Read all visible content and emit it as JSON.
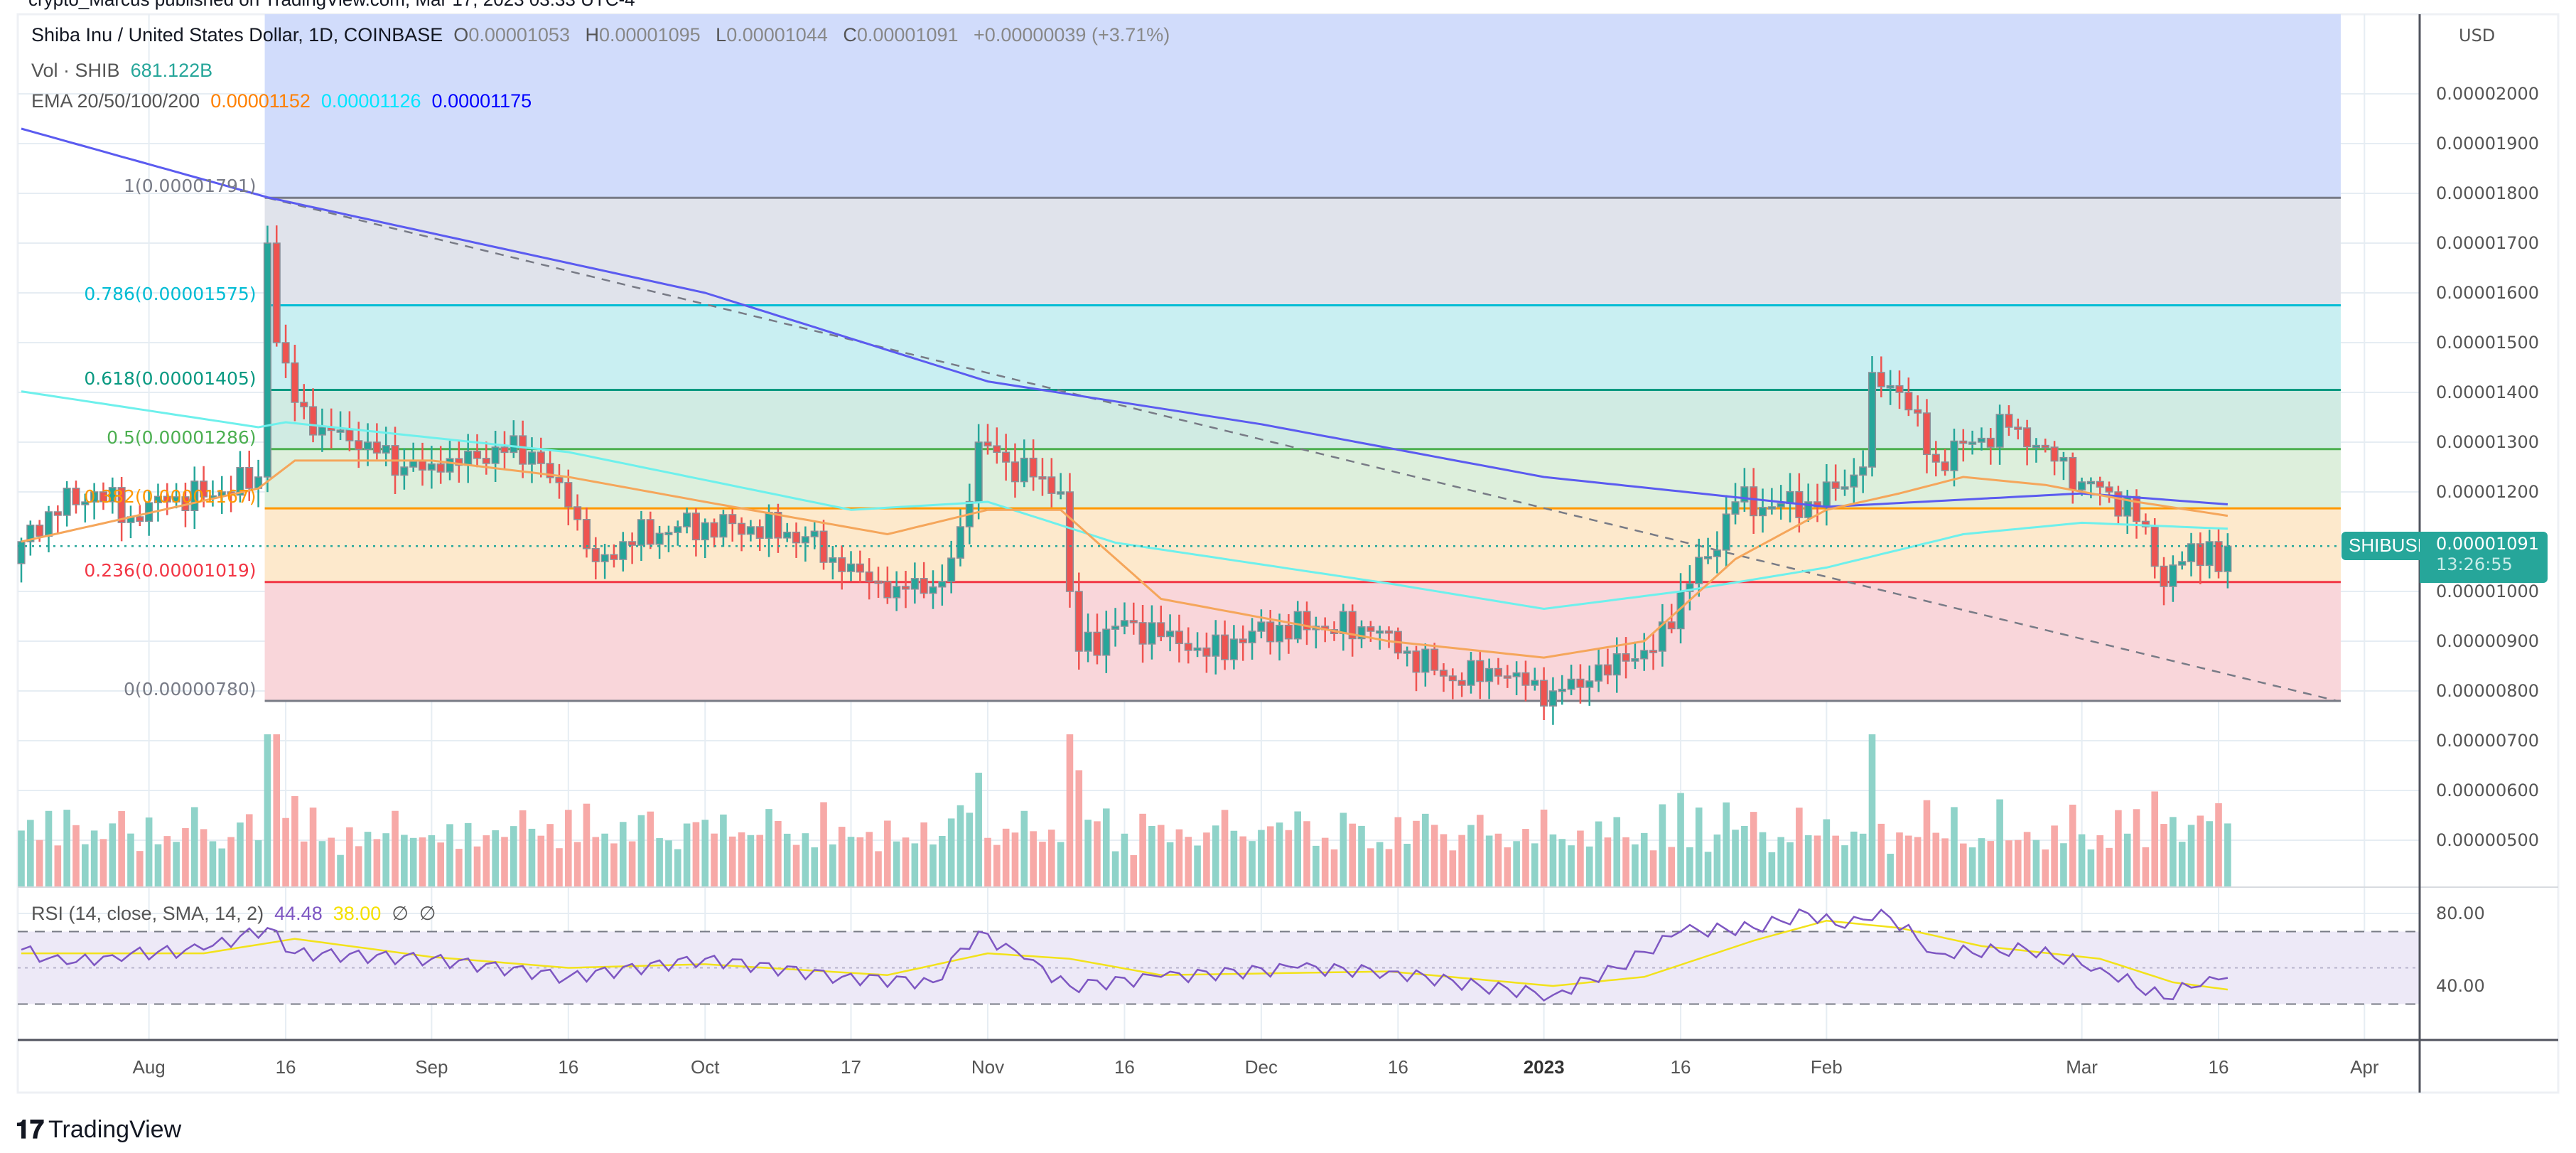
{
  "publisher_line": "crypto_Marcus published on TradingView.com, Mar 17, 2023 03:33 UTC-4",
  "legend": {
    "symbol_title": "Shiba Inu / United States Dollar, 1D, COINBASE",
    "ohlc": [
      {
        "key": "O",
        "value": "0.00001053"
      },
      {
        "key": "H",
        "value": "0.00001095"
      },
      {
        "key": "L",
        "value": "0.00001044"
      },
      {
        "key": "C",
        "value": "0.00001091"
      }
    ],
    "change": "+0.00000039 (+3.71%)",
    "volume_label": "Vol · SHIB",
    "volume_value": "681.122B",
    "ema_label": "EMA 20/50/100/200",
    "ema_values": [
      "0.00001152",
      "0.00001126",
      "0.00001175"
    ],
    "rsi_label": "RSI (14, close, SMA, 14, 2)",
    "rsi_value": "44.48",
    "rsi_sma_value": "38.00",
    "rsi_extra": [
      "∅",
      "∅"
    ]
  },
  "price_axis": {
    "currency": "USD",
    "ticks": [
      "0.00002000",
      "0.00001900",
      "0.00001800",
      "0.00001700",
      "0.00001600",
      "0.00001500",
      "0.00001400",
      "0.00001300",
      "0.00001200",
      "0.00001000",
      "0.00000900",
      "0.00000800",
      "0.00000700",
      "0.00000600",
      "0.00000500"
    ],
    "last_price": "0.00001091",
    "countdown": "13:26:55",
    "symbol_tag": "SHIBUSD"
  },
  "rsi_axis": {
    "ticks": [
      "80.00",
      "40.00"
    ]
  },
  "time_axis": {
    "ticks": [
      {
        "label": "Aug",
        "day": 14
      },
      {
        "label": "16",
        "day": 29
      },
      {
        "label": "Sep",
        "day": 45
      },
      {
        "label": "16",
        "day": 60
      },
      {
        "label": "Oct",
        "day": 75
      },
      {
        "label": "17",
        "day": 91
      },
      {
        "label": "Nov",
        "day": 106
      },
      {
        "label": "16",
        "day": 121
      },
      {
        "label": "Dec",
        "day": 136
      },
      {
        "label": "16",
        "day": 151
      },
      {
        "label": "2023",
        "day": 167
      },
      {
        "label": "16",
        "day": 182
      },
      {
        "label": "Feb",
        "day": 198
      },
      {
        "label": "Mar",
        "day": 226
      },
      {
        "label": "16",
        "day": 241
      },
      {
        "label": "Apr",
        "day": 257
      }
    ]
  },
  "fib_levels": [
    {
      "label": "1(0.00001791)",
      "price": 1791,
      "color": "#787b86",
      "fill": "#e0e3eb"
    },
    {
      "label": "0.786(0.00001575)",
      "price": 1575,
      "color": "#00bcd4",
      "fill": "#c9eff2"
    },
    {
      "label": "0.618(0.00001405)",
      "price": 1405,
      "color": "#089981",
      "fill": "#d0ebe3"
    },
    {
      "label": "0.5(0.00001286)",
      "price": 1286,
      "color": "#4caf50",
      "fill": "#ddefdc"
    },
    {
      "label": "0.382(0.00001167)",
      "price": 1167,
      "color": "#ff9800",
      "fill": "#fde9cc"
    },
    {
      "label": "0.236(0.00001019)",
      "price": 1019,
      "color": "#f23645",
      "fill": "#f9d6da"
    },
    {
      "label": "0(0.00000780)",
      "price": 780,
      "color": "#787b86",
      "fill": null
    }
  ],
  "colors": {
    "up": "#26a69a",
    "down": "#ef5350",
    "ema20": "#ff9800",
    "ema50": "#00ffff",
    "ema200": "#0000ff",
    "rsi": "#7e57c2",
    "rsi_sma": "#ffeb3b",
    "above_fib": "#d1dcfb"
  },
  "footer": {
    "brand": "TradingView"
  },
  "chart_data": {
    "type": "candlestick",
    "title": "Shiba Inu / United States Dollar, 1D, COINBASE",
    "x_unit": "days since Jul 18 2022",
    "y_unit": "USD x 1e-8",
    "ylim": [
      430,
      2050
    ],
    "closes": [
      [
        0,
        1100
      ],
      [
        3,
        1160
      ],
      [
        8,
        1200
      ],
      [
        12,
        1150
      ],
      [
        16,
        1180
      ],
      [
        22,
        1200
      ],
      [
        26,
        1230
      ],
      [
        27,
        1700
      ],
      [
        28,
        1500
      ],
      [
        30,
        1380
      ],
      [
        33,
        1330
      ],
      [
        38,
        1300
      ],
      [
        42,
        1250
      ],
      [
        46,
        1240
      ],
      [
        52,
        1290
      ],
      [
        56,
        1280
      ],
      [
        60,
        1170
      ],
      [
        63,
        1060
      ],
      [
        66,
        1100
      ],
      [
        72,
        1130
      ],
      [
        80,
        1130
      ],
      [
        86,
        1110
      ],
      [
        90,
        1040
      ],
      [
        96,
        1010
      ],
      [
        101,
        1020
      ],
      [
        103,
        1130
      ],
      [
        105,
        1300
      ],
      [
        108,
        1260
      ],
      [
        112,
        1230
      ],
      [
        114,
        1200
      ],
      [
        115,
        1000
      ],
      [
        116,
        880
      ],
      [
        120,
        930
      ],
      [
        126,
        920
      ],
      [
        130,
        870
      ],
      [
        135,
        920
      ],
      [
        142,
        930
      ],
      [
        148,
        920
      ],
      [
        152,
        880
      ],
      [
        156,
        830
      ],
      [
        162,
        830
      ],
      [
        168,
        800
      ],
      [
        172,
        820
      ],
      [
        176,
        860
      ],
      [
        179,
        880
      ],
      [
        182,
        1000
      ],
      [
        185,
        1070
      ],
      [
        188,
        1180
      ],
      [
        192,
        1170
      ],
      [
        196,
        1180
      ],
      [
        200,
        1210
      ],
      [
        202,
        1250
      ],
      [
        203,
        1440
      ],
      [
        206,
        1400
      ],
      [
        210,
        1260
      ],
      [
        214,
        1300
      ],
      [
        218,
        1330
      ],
      [
        222,
        1290
      ],
      [
        226,
        1220
      ],
      [
        229,
        1200
      ],
      [
        233,
        1130
      ],
      [
        235,
        1010
      ],
      [
        237,
        1060
      ],
      [
        240,
        1100
      ],
      [
        241,
        1040
      ],
      [
        242,
        1091
      ]
    ],
    "ema20": [
      [
        0,
        1100
      ],
      [
        26,
        1207
      ],
      [
        30,
        1263
      ],
      [
        45,
        1263
      ],
      [
        60,
        1230
      ],
      [
        75,
        1180
      ],
      [
        95,
        1115
      ],
      [
        106,
        1164
      ],
      [
        114,
        1164
      ],
      [
        125,
        985
      ],
      [
        150,
        900
      ],
      [
        167,
        867
      ],
      [
        178,
        900
      ],
      [
        188,
        1065
      ],
      [
        198,
        1164
      ],
      [
        206,
        1197
      ],
      [
        213,
        1230
      ],
      [
        222,
        1214
      ],
      [
        232,
        1180
      ],
      [
        242,
        1152
      ]
    ],
    "ema50": [
      [
        0,
        1402
      ],
      [
        26,
        1330
      ],
      [
        29,
        1340
      ],
      [
        60,
        1280
      ],
      [
        91,
        1164
      ],
      [
        106,
        1180
      ],
      [
        120,
        1098
      ],
      [
        150,
        1016
      ],
      [
        167,
        965
      ],
      [
        182,
        1000
      ],
      [
        198,
        1048
      ],
      [
        213,
        1115
      ],
      [
        226,
        1138
      ],
      [
        242,
        1126
      ]
    ],
    "ema200": [
      [
        0,
        1930
      ],
      [
        27,
        1792
      ],
      [
        75,
        1600
      ],
      [
        106,
        1422
      ],
      [
        136,
        1336
      ],
      [
        167,
        1230
      ],
      [
        198,
        1170
      ],
      [
        226,
        1197
      ],
      [
        242,
        1175
      ]
    ],
    "trendline": [
      [
        27,
        1791
      ],
      [
        254,
        780
      ]
    ],
    "rsi": [
      [
        0,
        60
      ],
      [
        5,
        52
      ],
      [
        10,
        57
      ],
      [
        20,
        60
      ],
      [
        27,
        72
      ],
      [
        30,
        58
      ],
      [
        45,
        55
      ],
      [
        60,
        45
      ],
      [
        75,
        55
      ],
      [
        90,
        45
      ],
      [
        100,
        42
      ],
      [
        105,
        70
      ],
      [
        110,
        55
      ],
      [
        115,
        40
      ],
      [
        125,
        45
      ],
      [
        140,
        50
      ],
      [
        150,
        48
      ],
      [
        160,
        40
      ],
      [
        168,
        35
      ],
      [
        175,
        50
      ],
      [
        182,
        70
      ],
      [
        190,
        72
      ],
      [
        196,
        80
      ],
      [
        200,
        72
      ],
      [
        204,
        82
      ],
      [
        210,
        58
      ],
      [
        220,
        60
      ],
      [
        228,
        50
      ],
      [
        235,
        33
      ],
      [
        240,
        45
      ],
      [
        242,
        44.48
      ]
    ],
    "rsi_sma": [
      [
        0,
        58
      ],
      [
        20,
        58
      ],
      [
        30,
        66
      ],
      [
        45,
        56
      ],
      [
        60,
        50
      ],
      [
        75,
        52
      ],
      [
        95,
        46
      ],
      [
        106,
        58
      ],
      [
        115,
        55
      ],
      [
        125,
        46
      ],
      [
        150,
        48
      ],
      [
        168,
        40
      ],
      [
        178,
        45
      ],
      [
        190,
        65
      ],
      [
        198,
        76
      ],
      [
        206,
        72
      ],
      [
        215,
        62
      ],
      [
        228,
        55
      ],
      [
        236,
        42
      ],
      [
        242,
        38
      ]
    ],
    "rsi_bands": [
      70,
      50,
      30
    ]
  }
}
